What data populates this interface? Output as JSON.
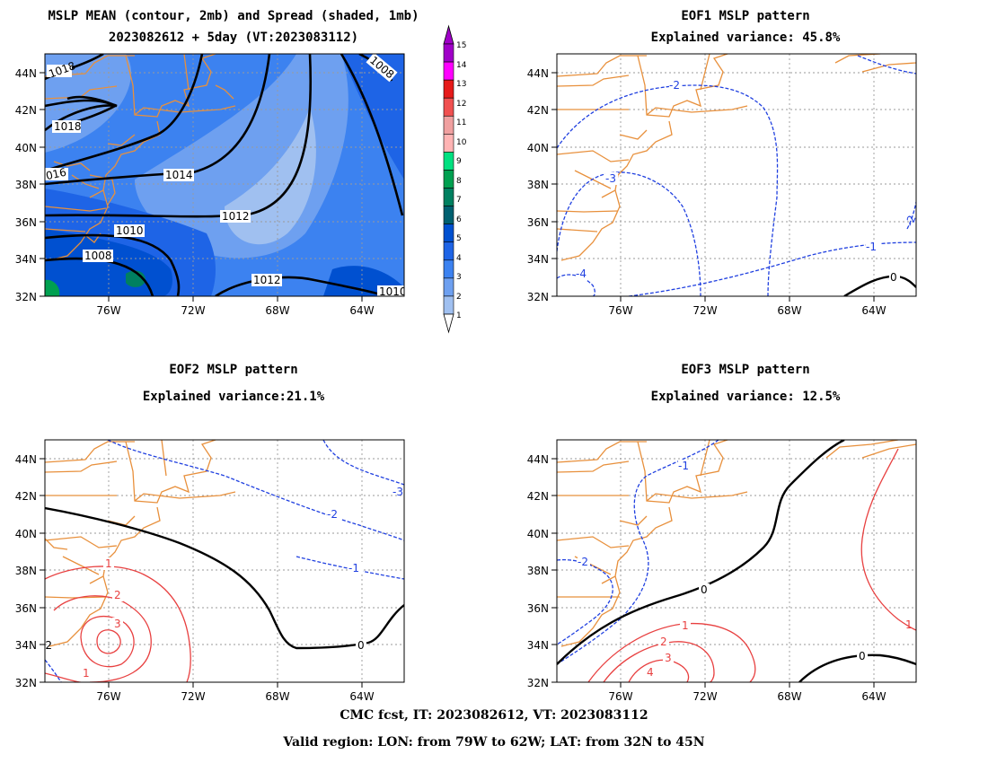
{
  "panels": {
    "mslp": {
      "title_line1": "MSLP MEAN (contour, 2mb) and Spread (shaded, 1mb)",
      "title_line2": "2023082612 + 5day (VT:2023083112)",
      "contour_labels": [
        "1018",
        "1018",
        "016",
        "1014",
        "1012",
        "1010",
        "1008",
        "1012",
        "1008",
        "1010"
      ]
    },
    "eof1": {
      "title_line1": "EOF1 MSLP pattern",
      "title_line2": "Explained variance: 45.8%",
      "contour_labels": [
        "-2",
        "-3",
        "-4",
        "-1",
        "0",
        "-2"
      ]
    },
    "eof2": {
      "title_line1": "EOF2 MSLP pattern",
      "title_line2": "Explained variance:21.1%",
      "contour_labels": [
        "-3",
        "-2",
        "-1",
        "0",
        "1",
        "2",
        "3",
        "-2",
        "1"
      ]
    },
    "eof3": {
      "title_line1": "EOF3 MSLP pattern",
      "title_line2": "Explained variance: 12.5%",
      "contour_labels": [
        "-1",
        "-2",
        "0",
        "1",
        "2",
        "3",
        "4",
        "0",
        "1"
      ]
    }
  },
  "axes": {
    "lat_labels": [
      "44N",
      "42N",
      "40N",
      "38N",
      "36N",
      "34N",
      "32N"
    ],
    "lon_labels": [
      "76W",
      "72W",
      "68W",
      "64W"
    ]
  },
  "colorbar": {
    "labels": [
      "15",
      "14",
      "13",
      "12",
      "11",
      "10",
      "9",
      "8",
      "7",
      "6",
      "5",
      "4",
      "3",
      "2",
      "1"
    ],
    "colors": [
      "#a000c8",
      "#ff00ff",
      "#e61a1a",
      "#f05050",
      "#f0a0a0",
      "#ffb4b4",
      "#00e080",
      "#00a050",
      "#008060",
      "#006070",
      "#0050d0",
      "#1e64e6",
      "#3c82f0",
      "#6ea0f0",
      "#a0c0f0"
    ]
  },
  "colors": {
    "coast": "#e8903c",
    "negative_contour": "#2040e0",
    "positive_contour": "#e84040",
    "zero_contour": "#000000"
  },
  "footer": {
    "line1": "CMC fcst, IT: 2023082612, VT: 2023083112",
    "line2": "Valid region: LON: from 79W to 62W; LAT: from 32N to 45N"
  }
}
